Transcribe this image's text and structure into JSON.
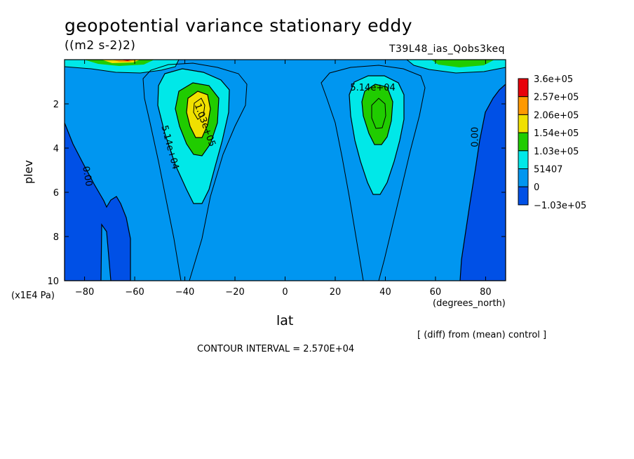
{
  "header": {
    "title": "geopotential variance stationary eddy",
    "units": "((m2 s-2)2)",
    "run_id": "T39L48_ias_Qobs3keq"
  },
  "footer": {
    "diff_note": "[ (diff) from (mean) control ]",
    "contour_interval": "CONTOUR INTERVAL = 2.570E+04"
  },
  "chart_data": {
    "type": "heatmap",
    "subtype": "filled-contour",
    "xlabel": "lat",
    "x_unit": "(degrees_north)",
    "ylabel": "plev",
    "y_unit": "(x1E4 Pa)",
    "xlim": [
      -88,
      88
    ],
    "ylim": [
      0,
      10
    ],
    "y_inverted": true,
    "x_ticks": [
      -80,
      -60,
      -40,
      -20,
      0,
      20,
      40,
      60,
      80
    ],
    "x_tick_labels": [
      "−80",
      "−60",
      "−40",
      "−20",
      "0",
      "20",
      "40",
      "60",
      "80"
    ],
    "y_ticks": [
      2,
      4,
      6,
      8,
      10
    ],
    "y_tick_labels": [
      "2",
      "4",
      "6",
      "8",
      "10"
    ],
    "contour_interval": 25700,
    "colorbar": {
      "labels": [
        "3.6e+05",
        "2.57e+05",
        "2.06e+05",
        "1.54e+05",
        "1.03e+05",
        "51407",
        "0",
        "−1.03e+05"
      ],
      "colors": [
        "#e8000b",
        "#ff9900",
        "#f0e000",
        "#20cc00",
        "#00e8e8",
        "#0096f0",
        "#0050e6"
      ]
    },
    "fill_colors": {
      "negative": "#0050e6",
      "zero_to_51407": "#0096f0",
      "51407_to_103000": "#00e8e8",
      "103000_to_154000": "#20cc00",
      "154000_to_206000": "#f0e000",
      "206000_to_257000": "#ff9900",
      "above_257000": "#e8000b"
    },
    "contour_labels": [
      {
        "text": "0.00",
        "lat": -80,
        "plev": 5.3
      },
      {
        "text": "5.14e+04",
        "lat": -47,
        "plev": 4.0
      },
      {
        "text": "1.03e+05",
        "lat": -33,
        "plev": 3.0
      },
      {
        "text": "5.14e+04",
        "lat": 35,
        "plev": 1.4
      },
      {
        "text": "0.00",
        "lat": 77,
        "plev": 3.5
      }
    ],
    "features": [
      {
        "name": "southern-maximum",
        "lat": -36,
        "plev": 2.2,
        "value_range": "1.54e+05 to 2.06e+05"
      },
      {
        "name": "northern-maximum",
        "lat": 36,
        "plev": 2.5,
        "value_range": "1.03e+05 to 1.54e+05"
      }
    ]
  }
}
